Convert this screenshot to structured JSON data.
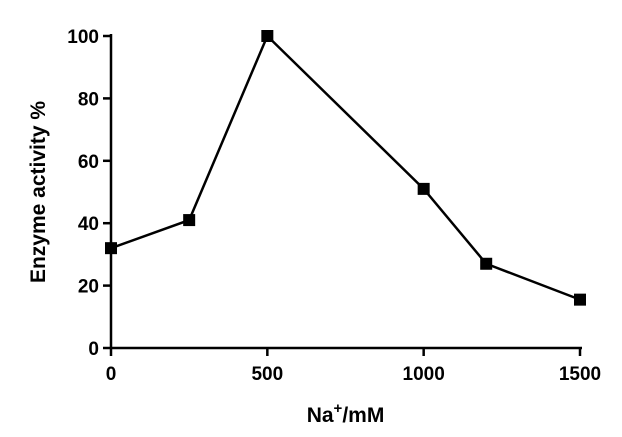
{
  "chart_data": {
    "type": "line",
    "title": "",
    "xlabel": "/mM",
    "xlabel_base": "Na",
    "xlabel_sup": "+",
    "ylabel": "Enzyme activity %",
    "xlim": [
      0,
      1500
    ],
    "ylim": [
      0,
      100
    ],
    "xticks": [
      "0",
      "500",
      "1000",
      "1500"
    ],
    "yticks": [
      "0",
      "20",
      "40",
      "60",
      "80",
      "100"
    ],
    "grid": false,
    "legend": "none",
    "series": [
      {
        "x": [
          0,
          250,
          500,
          1000,
          1200,
          1500
        ],
        "y": [
          32,
          41,
          100,
          51,
          27,
          15.5
        ],
        "color": "#000000",
        "marker": "square"
      }
    ]
  }
}
